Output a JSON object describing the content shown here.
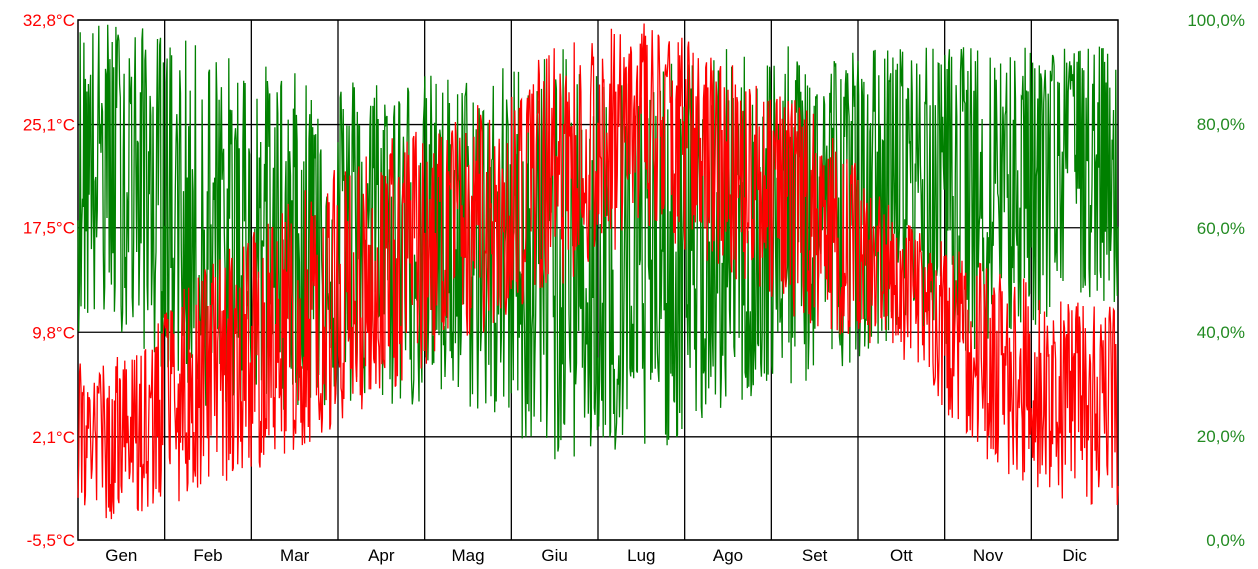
{
  "chart_data": {
    "type": "line",
    "title": "",
    "categories": [
      "Gen",
      "Feb",
      "Mar",
      "Apr",
      "Mag",
      "Giu",
      "Lug",
      "Ago",
      "Set",
      "Ott",
      "Nov",
      "Dic"
    ],
    "y_left": {
      "ticks": [
        "32,8°C",
        "25,1°C",
        "17,5°C",
        "9,8°C",
        "2,1°C",
        "-5,5°C"
      ],
      "tick_values": [
        32.8,
        25.1,
        17.5,
        9.8,
        2.1,
        -5.5
      ],
      "ylim": [
        -5.5,
        32.8
      ],
      "color": "#ff0000"
    },
    "y_right": {
      "ticks": [
        "100,0%",
        "80,0%",
        "60,0%",
        "40,0%",
        "20,0%",
        "0,0%"
      ],
      "tick_values": [
        100,
        80,
        60,
        40,
        20,
        0
      ],
      "ylim": [
        0,
        100
      ],
      "color": "#228b22"
    },
    "grid": true,
    "series": [
      {
        "axis": "left",
        "color": "#ff0000",
        "monthly_min": [
          -4,
          -2,
          1,
          5,
          9,
          13,
          17,
          14,
          10,
          8,
          0,
          -3
        ],
        "monthly_max": [
          8,
          15,
          20,
          24,
          26,
          31,
          33,
          30,
          26,
          18,
          15,
          12
        ],
        "monthly_mid": [
          2,
          5,
          9,
          12,
          17,
          22,
          25,
          23,
          19,
          14,
          8,
          3
        ]
      },
      {
        "axis": "right",
        "color": "#008000",
        "monthly_min": [
          40,
          25,
          25,
          25,
          25,
          15,
          15,
          25,
          30,
          40,
          35,
          45
        ],
        "monthly_max": [
          100,
          95,
          90,
          90,
          90,
          95,
          90,
          95,
          95,
          95,
          95,
          95
        ],
        "monthly_mid": [
          75,
          55,
          60,
          60,
          55,
          50,
          45,
          50,
          65,
          75,
          75,
          80
        ]
      }
    ]
  }
}
